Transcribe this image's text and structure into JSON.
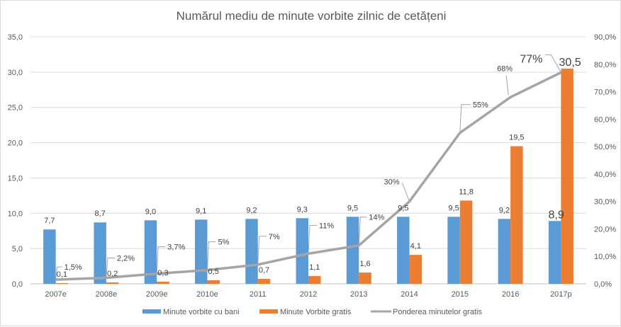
{
  "chart_data": {
    "type": "bar",
    "title": "Numărul mediu de minute vorbite zilnic de cetățeni",
    "categories": [
      "2007e",
      "2008e",
      "2009e",
      "2010e",
      "2011",
      "2012",
      "2013",
      "2014",
      "2015",
      "2016",
      "2017p"
    ],
    "series": [
      {
        "name": "Minute vorbite cu bani",
        "type": "bar",
        "axis": "left",
        "color": "#5b9bd5",
        "values": [
          7.7,
          8.7,
          9.0,
          9.1,
          9.2,
          9.3,
          9.5,
          9.5,
          9.5,
          9.2,
          8.9
        ],
        "labels": [
          "7,7",
          "8,7",
          "9,0",
          "9,1",
          "9,2",
          "9,3",
          "9,5",
          "9,5",
          "9,5",
          "9,2",
          "8,9"
        ]
      },
      {
        "name": "Minute Vorbite gratis",
        "type": "bar",
        "axis": "left",
        "color": "#ed7d31",
        "values": [
          0.1,
          0.2,
          0.3,
          0.5,
          0.7,
          1.1,
          1.6,
          4.1,
          11.8,
          19.5,
          30.5
        ],
        "labels": [
          "0,1",
          "0,2",
          "0,3",
          "0,5",
          "0,7",
          "1,1",
          "1,6",
          "4,1",
          "11,8",
          "19,5",
          "30,5"
        ]
      },
      {
        "name": "Ponderea minutelor gratis",
        "type": "line",
        "axis": "right",
        "color": "#a5a5a5",
        "values": [
          1.5,
          2.2,
          3.7,
          5,
          7,
          11,
          14,
          30,
          55,
          68,
          77
        ],
        "labels": [
          "1,5%",
          "2,2%",
          "3,7%",
          "5%",
          "7%",
          "11%",
          "14%",
          "30%",
          "55%",
          "68%",
          "77%"
        ]
      }
    ],
    "y_left": {
      "range": [
        0,
        35
      ],
      "ticks": [
        "0,0",
        "5,0",
        "10,0",
        "15,0",
        "20,0",
        "25,0",
        "30,0",
        "35,0"
      ]
    },
    "y_right": {
      "range": [
        0,
        90
      ],
      "ticks": [
        "0,0%",
        "10,0%",
        "20,0%",
        "30,0%",
        "40,0%",
        "50,0%",
        "60,0%",
        "70,0%",
        "80,0%",
        "90,0%"
      ]
    },
    "grid": true,
    "legend_position": "bottom",
    "legend": [
      "Minute vorbite cu bani",
      "Minute Vorbite gratis",
      "Ponderea minutelor gratis"
    ]
  }
}
